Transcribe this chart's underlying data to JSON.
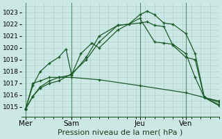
{
  "title": "Pression niveau de la mer( hPa )",
  "bg_color": "#cce8e4",
  "grid_color": "#aacccc",
  "line_color": "#1a5c28",
  "ylim": [
    1014.2,
    1023.8
  ],
  "yticks": [
    1015,
    1016,
    1017,
    1018,
    1019,
    1020,
    1021,
    1022,
    1023
  ],
  "xtick_labels": [
    "Mer",
    "Sam",
    "Jeu",
    "Ven"
  ],
  "xtick_positions": [
    0,
    25,
    62,
    87
  ],
  "vline_positions": [
    0,
    25,
    62,
    87
  ],
  "xlim": [
    -2,
    105
  ],
  "series": [
    {
      "x": [
        0,
        4,
        8,
        13,
        18,
        25,
        33,
        40,
        50,
        56,
        62,
        66,
        70,
        75,
        80,
        87,
        92,
        97,
        105
      ],
      "y": [
        1014.8,
        1015.9,
        1016.6,
        1017.0,
        1017.2,
        1017.8,
        1019.0,
        1020.5,
        1021.9,
        1022.0,
        1022.8,
        1023.1,
        1022.8,
        1022.1,
        1022.0,
        1021.2,
        1019.5,
        1015.8,
        1015.1
      ]
    },
    {
      "x": [
        0,
        4,
        8,
        13,
        18,
        25,
        33,
        40,
        50,
        62,
        66,
        70,
        75,
        80,
        87,
        92,
        97,
        105
      ],
      "y": [
        1014.8,
        1015.9,
        1016.7,
        1017.2,
        1017.5,
        1017.7,
        1019.2,
        1021.0,
        1021.9,
        1022.1,
        1022.2,
        1021.9,
        1021.8,
        1020.2,
        1019.2,
        1019.0,
        1015.8,
        1015.4
      ]
    },
    {
      "x": [
        0,
        4,
        8,
        13,
        18,
        22,
        25,
        30,
        36,
        40,
        50,
        62,
        70,
        75,
        80,
        87,
        92,
        97,
        105
      ],
      "y": [
        1014.8,
        1016.8,
        1018.0,
        1018.7,
        1019.2,
        1019.9,
        1017.7,
        1019.5,
        1020.4,
        1020.0,
        1021.5,
        1022.5,
        1020.5,
        1020.4,
        1020.3,
        1019.5,
        1017.5,
        1015.8,
        1015.5
      ]
    },
    {
      "x": [
        0,
        4,
        8,
        13,
        18,
        25,
        40,
        62,
        87,
        97,
        105
      ],
      "y": [
        1014.8,
        1017.0,
        1017.2,
        1017.5,
        1017.5,
        1017.5,
        1017.3,
        1016.8,
        1016.2,
        1015.8,
        1015.2
      ]
    }
  ]
}
